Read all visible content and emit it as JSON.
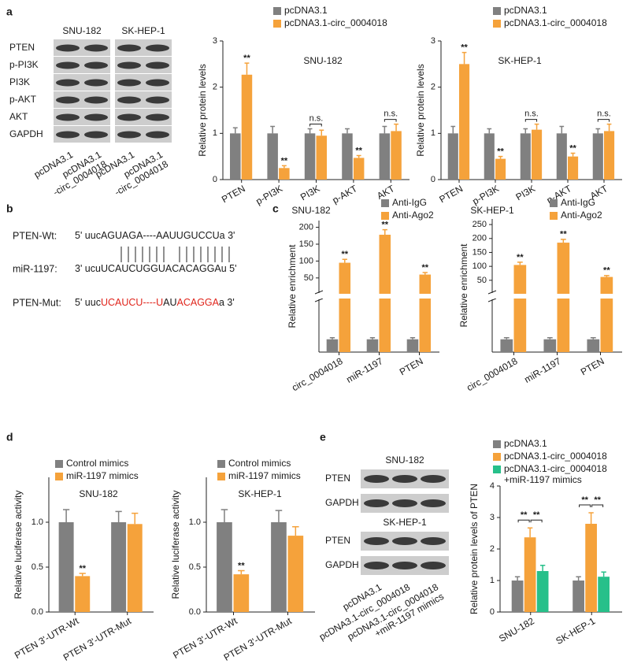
{
  "panel_labels": [
    "a",
    "b",
    "c",
    "d",
    "e"
  ],
  "blot_a": {
    "cell_lines": [
      "SNU-182",
      "SK-HEP-1"
    ],
    "proteins": [
      "PTEN",
      "p-PI3K",
      "PI3K",
      "p-AKT",
      "AKT",
      "GAPDH"
    ],
    "lanes": [
      "pcDNA3.1",
      "pcDNA3.1\n-circ_0004018",
      "pcDNA3.1",
      "pcDNA3.1\n-circ_0004018"
    ]
  },
  "alignment_b": {
    "rows": [
      {
        "label": "PTEN-Wt:",
        "segments": [
          {
            "text": "5' uucAGUAGA----AAUUGUCCUa 3'"
          }
        ]
      },
      {
        "label": "miR-1197:",
        "segments": [
          {
            "text": "3' ucuUCAUCUGGUACACAGGAu 5'"
          }
        ]
      },
      {
        "label": "PTEN-Mut:",
        "segments": [
          {
            "text": "5' uuc"
          },
          {
            "text": "UCAUCU----U",
            "color": "#e0241b"
          },
          {
            "text": "AU"
          },
          {
            "text": "ACAGGA",
            "color": "#e0241b"
          },
          {
            "text": "a 3'"
          }
        ]
      }
    ]
  },
  "blot_e": {
    "groups": [
      {
        "cell_line": "SNU-182",
        "proteins": [
          "PTEN",
          "GAPDH"
        ]
      },
      {
        "cell_line": "SK-HEP-1",
        "proteins": [
          "PTEN",
          "GAPDH"
        ]
      }
    ],
    "lanes": [
      "pcDNA3.1",
      "pcDNA3.1-circ_0004018",
      "pcDNA3.1-circ_0004018\n+miR-1197 mimics"
    ]
  },
  "chart_data": [
    {
      "type": "bar",
      "title": "SNU-182",
      "ylabel": "Relative protein levels",
      "categories": [
        "PTEN",
        "p-PI3K",
        "PI3K",
        "p-AKT",
        "AKT"
      ],
      "series": [
        {
          "name": "pcDNA3.1",
          "color": "#808080",
          "values": [
            1,
            1,
            1,
            1,
            1
          ],
          "errors": [
            0.12,
            0.15,
            0.1,
            0.1,
            0.15
          ]
        },
        {
          "name": "pcDNA3.1-circ_0004018",
          "color": "#f5a23b",
          "values": [
            2.27,
            0.25,
            0.95,
            0.47,
            1.05
          ],
          "errors": [
            0.25,
            0.05,
            0.12,
            0.05,
            0.15
          ],
          "marks": [
            "**",
            "**",
            null,
            "**",
            null
          ]
        }
      ],
      "group_annotations": [
        null,
        null,
        "n.s.",
        null,
        "n.s."
      ],
      "ylim": [
        0,
        3
      ],
      "yticks": [
        0,
        1,
        2,
        3
      ]
    },
    {
      "type": "bar",
      "title": "SK-HEP-1",
      "ylabel": "Relative protein levels",
      "categories": [
        "PTEN",
        "p-PI3K",
        "PI3K",
        "p-AKT",
        "AKT"
      ],
      "series": [
        {
          "name": "pcDNA3.1",
          "color": "#808080",
          "values": [
            1,
            1,
            1,
            1,
            1
          ],
          "errors": [
            0.15,
            0.1,
            0.1,
            0.15,
            0.1
          ]
        },
        {
          "name": "pcDNA3.1-circ_0004018",
          "color": "#f5a23b",
          "values": [
            2.5,
            0.45,
            1.08,
            0.5,
            1.05
          ],
          "errors": [
            0.25,
            0.05,
            0.12,
            0.07,
            0.15
          ],
          "marks": [
            "**",
            "**",
            null,
            "**",
            null
          ]
        }
      ],
      "group_annotations": [
        null,
        null,
        "n.s.",
        null,
        "n.s."
      ],
      "ylim": [
        0,
        3
      ],
      "yticks": [
        0,
        1,
        2,
        3
      ]
    },
    {
      "type": "bar",
      "title": "SNU-182",
      "ylabel": "Relative enrichment",
      "categories": [
        "circ_0004018",
        "miR-1197",
        "PTEN"
      ],
      "series": [
        {
          "name": "Anti-IgG",
          "color": "#808080",
          "values": [
            1,
            1,
            1
          ],
          "errors": [
            0.12,
            0.12,
            0.12
          ]
        },
        {
          "name": "Anti-Ago2",
          "color": "#f5a23b",
          "values": [
            95,
            178,
            60
          ],
          "errors": [
            10,
            15,
            6
          ],
          "marks": [
            "**",
            "**",
            "**"
          ]
        }
      ],
      "ylim": [
        0,
        220
      ],
      "axis_break": [
        4,
        10
      ],
      "yticks": [
        50,
        100,
        150,
        200
      ]
    },
    {
      "type": "bar",
      "title": "SK-HEP-1",
      "ylabel": "Relative enrichment",
      "categories": [
        "circ_0004018",
        "miR-1197",
        "PTEN"
      ],
      "series": [
        {
          "name": "Anti-IgG",
          "color": "#808080",
          "values": [
            1,
            1,
            1
          ],
          "errors": [
            0.12,
            0.12,
            0.12
          ]
        },
        {
          "name": "Anti-Ago2",
          "color": "#f5a23b",
          "values": [
            105,
            185,
            62
          ],
          "errors": [
            10,
            12,
            5
          ],
          "marks": [
            "**",
            "**",
            "**"
          ]
        }
      ],
      "ylim": [
        0,
        270
      ],
      "axis_break": [
        4,
        10
      ],
      "yticks": [
        50,
        100,
        150,
        200,
        250
      ]
    },
    {
      "type": "bar",
      "title": "SNU-182",
      "ylabel": "Relative luciferase activity",
      "categories": [
        "PTEN 3'-UTR-Wt",
        "PTEN 3'-UTR-Mut"
      ],
      "series": [
        {
          "name": "Control mimics",
          "color": "#808080",
          "values": [
            1,
            1
          ],
          "errors": [
            0.14,
            0.12
          ]
        },
        {
          "name": "miR-1197 mimics",
          "color": "#f5a23b",
          "values": [
            0.4,
            0.98
          ],
          "errors": [
            0.03,
            0.12
          ],
          "marks": [
            "**",
            null
          ]
        }
      ],
      "ylim": [
        0,
        1.5
      ],
      "yticks": [
        {
          "value": 0,
          "label": "0.0"
        },
        0.5,
        {
          "value": 1,
          "label": "1.0"
        }
      ]
    },
    {
      "type": "bar",
      "title": "SK-HEP-1",
      "ylabel": "Relative luciferase activity",
      "categories": [
        "PTEN 3'-UTR-Wt",
        "PTEN 3'-UTR-Mut"
      ],
      "series": [
        {
          "name": "Control mimics",
          "color": "#808080",
          "values": [
            1,
            1
          ],
          "errors": [
            0.14,
            0.13
          ]
        },
        {
          "name": "miR-1197 mimics",
          "color": "#f5a23b",
          "values": [
            0.42,
            0.85
          ],
          "errors": [
            0.04,
            0.1
          ],
          "marks": [
            "**",
            null
          ]
        }
      ],
      "ylim": [
        0,
        1.5
      ],
      "yticks": [
        {
          "value": 0,
          "label": "0.0"
        },
        0.5,
        {
          "value": 1,
          "label": "1.0"
        }
      ]
    },
    {
      "type": "bar",
      "ylabel": "Relative protein levels of PTEN",
      "categories": [
        "SNU-182",
        "SK-HEP-1"
      ],
      "series": [
        {
          "name": "pcDNA3.1",
          "color": "#808080",
          "values": [
            1,
            1
          ],
          "errors": [
            0.12,
            0.12
          ]
        },
        {
          "name": "pcDNA3.1-circ_0004018",
          "color": "#f5a23b",
          "values": [
            2.37,
            2.8
          ],
          "errors": [
            0.3,
            0.35
          ]
        },
        {
          "name": "pcDNA3.1-circ_0004018\n+miR-1197 mimics",
          "color": "#27c08a",
          "values": [
            1.3,
            1.12
          ],
          "errors": [
            0.18,
            0.15
          ]
        }
      ],
      "comparisons": [
        {
          "category": 0,
          "series": [
            0,
            1
          ],
          "label": "**"
        },
        {
          "category": 0,
          "series": [
            1,
            2
          ],
          "label": "**"
        },
        {
          "category": 1,
          "series": [
            0,
            1
          ],
          "label": "**"
        },
        {
          "category": 1,
          "series": [
            1,
            2
          ],
          "label": "**"
        }
      ],
      "ylim": [
        0,
        4
      ],
      "yticks": [
        0,
        1,
        2,
        3,
        4
      ]
    }
  ]
}
